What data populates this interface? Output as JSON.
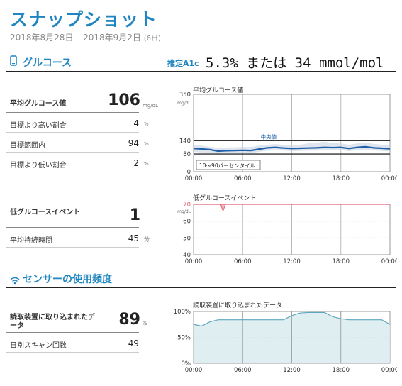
{
  "header": {
    "title": "スナップショット",
    "date_range": "2018年8月28日 – 2018年9月2日",
    "days": "(6日)"
  },
  "glucose_section": {
    "title": "グルコース",
    "icon": "phone-icon",
    "a1c_label": "推定A1c",
    "a1c_value": "5.3% または 34 mmol/mol"
  },
  "glucose_stats": [
    {
      "label": "平均グルコース値",
      "value": "106",
      "unit": "mg/dL"
    },
    {
      "label": "目標より高い割合",
      "value": "4",
      "unit": "%"
    },
    {
      "label": "目標範囲内",
      "value": "94",
      "unit": "%"
    },
    {
      "label": "目標より低い割合",
      "value": "2",
      "unit": "%"
    }
  ],
  "low_stats": [
    {
      "label": "低グルコースイベント",
      "value": "1",
      "unit": ""
    },
    {
      "label": "平均持続時間",
      "value": "45",
      "unit": "分"
    }
  ],
  "sensor_section": {
    "title": "センサーの使用頻度",
    "icon": "wifi-icon"
  },
  "sensor_stats": [
    {
      "label": "読取装置に取り込まれたデータ",
      "value": "89",
      "unit": "%"
    },
    {
      "label": "日別スキャン回数",
      "value": "49",
      "unit": ""
    }
  ],
  "colors": {
    "accent": "#1f86c1",
    "median_line": "#1f5fa8",
    "band": "#c9d3e2",
    "low_line": "#e06070",
    "sensor_fill": "#d9ecef",
    "sensor_line": "#5fa7c0"
  },
  "chart_data": [
    {
      "type": "line",
      "title": "平均グルコース値",
      "ylabel": "mg/dL",
      "ylim": [
        0,
        350
      ],
      "yticks": [
        0,
        80,
        140,
        350
      ],
      "target_lines": [
        80,
        140
      ],
      "xticks": [
        "00:00",
        "06:00",
        "12:00",
        "18:00",
        "00:00"
      ],
      "x_hours": [
        0,
        1,
        2,
        3,
        4,
        5,
        6,
        7,
        8,
        9,
        10,
        11,
        12,
        13,
        14,
        15,
        16,
        17,
        18,
        19,
        20,
        21,
        22,
        23,
        24
      ],
      "median": [
        105,
        103,
        100,
        93,
        95,
        96,
        97,
        96,
        102,
        108,
        110,
        107,
        105,
        106,
        107,
        108,
        110,
        109,
        110,
        105,
        110,
        113,
        108,
        106,
        104
      ],
      "band_low": [
        90,
        87,
        84,
        82,
        84,
        85,
        85,
        85,
        90,
        95,
        97,
        95,
        93,
        94,
        95,
        95,
        97,
        96,
        97,
        93,
        97,
        100,
        96,
        94,
        92
      ],
      "band_high": [
        120,
        118,
        112,
        108,
        110,
        110,
        112,
        112,
        118,
        122,
        125,
        122,
        120,
        122,
        128,
        132,
        135,
        130,
        128,
        122,
        128,
        132,
        126,
        122,
        120
      ],
      "annotations": [
        "中央値",
        "10～90パーセンタイル"
      ]
    },
    {
      "type": "line",
      "title": "低グルコースイベント",
      "ylabel": "mg/dL",
      "ylim": [
        40,
        70
      ],
      "yticks": [
        40,
        50,
        60,
        70
      ],
      "threshold": 70,
      "xticks": [
        "00:00",
        "06:00",
        "12:00",
        "18:00",
        "00:00"
      ],
      "events": [
        {
          "hour": 3.6,
          "values": [
            70,
            66,
            70
          ]
        }
      ]
    },
    {
      "type": "area",
      "title": "読取装置に取り込まれたデータ",
      "ylim": [
        0,
        100
      ],
      "yticks": [
        "0%",
        "50%",
        "100%"
      ],
      "xticks": [
        "00:00",
        "06:00",
        "12:00",
        "18:00",
        "00:00"
      ],
      "x_hours": [
        0,
        1,
        2,
        3,
        4,
        5,
        6,
        7,
        8,
        9,
        10,
        11,
        12,
        13,
        14,
        15,
        16,
        17,
        18,
        19,
        20,
        21,
        22,
        23,
        24
      ],
      "values": [
        75,
        72,
        80,
        84,
        84,
        84,
        84,
        84,
        84,
        84,
        84,
        84,
        92,
        97,
        98,
        98,
        98,
        90,
        86,
        84,
        84,
        84,
        84,
        84,
        75
      ]
    }
  ]
}
